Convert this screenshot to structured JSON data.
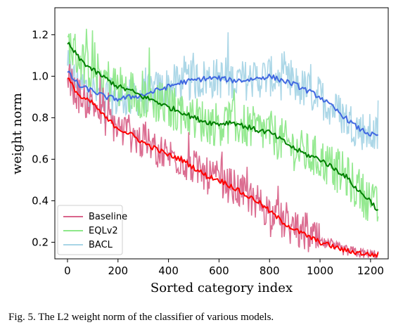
{
  "caption": "Fig. 5.  The L2 weight norm of the classifier of various models.",
  "chart_data": {
    "type": "line",
    "xlabel": "Sorted category index",
    "ylabel": "weight norm",
    "xlim": [
      -50,
      1270
    ],
    "ylim": [
      0.12,
      1.33
    ],
    "xticks": [
      0,
      200,
      400,
      600,
      800,
      1000,
      1200
    ],
    "yticks": [
      0.2,
      0.4,
      0.6,
      0.8,
      1.0,
      1.2
    ],
    "xtick_labels": [
      "0",
      "200",
      "400",
      "600",
      "800",
      "1000",
      "1200"
    ],
    "ytick_labels": [
      "0.2",
      "0.4",
      "0.6",
      "0.8",
      "1.0",
      "1.2"
    ],
    "grid": false,
    "legend_position": "lower-left",
    "legend": [
      {
        "label": "Baseline",
        "color": "#d9658b"
      },
      {
        "label": "EQLv2",
        "color": "#8ee88a"
      },
      {
        "label": "BACL",
        "color": "#a8d5e6"
      }
    ],
    "x": [
      0,
      50,
      100,
      150,
      200,
      250,
      300,
      350,
      400,
      450,
      500,
      550,
      600,
      650,
      700,
      750,
      800,
      850,
      900,
      950,
      1000,
      1050,
      1100,
      1150,
      1200,
      1230
    ],
    "series": [
      {
        "name": "Baseline",
        "raw_color": "#d9658b",
        "smooth_color": "#ff0000",
        "values": [
          0.99,
          0.9,
          0.87,
          0.8,
          0.75,
          0.72,
          0.68,
          0.65,
          0.62,
          0.6,
          0.56,
          0.52,
          0.5,
          0.47,
          0.43,
          0.4,
          0.35,
          0.3,
          0.26,
          0.23,
          0.2,
          0.18,
          0.16,
          0.15,
          0.14,
          0.14
        ]
      },
      {
        "name": "EQLv2",
        "raw_color": "#8ee88a",
        "smooth_color": "#008000",
        "values": [
          1.16,
          1.08,
          1.03,
          0.99,
          0.95,
          0.93,
          0.9,
          0.88,
          0.85,
          0.83,
          0.8,
          0.78,
          0.77,
          0.78,
          0.76,
          0.74,
          0.73,
          0.69,
          0.65,
          0.62,
          0.6,
          0.56,
          0.52,
          0.45,
          0.4,
          0.35
        ]
      },
      {
        "name": "BACL",
        "raw_color": "#a8d5e6",
        "smooth_color": "#4169e1",
        "values": [
          1.02,
          0.95,
          0.93,
          0.9,
          0.89,
          0.9,
          0.91,
          0.93,
          0.95,
          0.97,
          0.98,
          0.99,
          0.99,
          0.98,
          0.98,
          0.99,
          1.0,
          0.98,
          0.96,
          0.93,
          0.9,
          0.85,
          0.8,
          0.75,
          0.72,
          0.71
        ]
      }
    ]
  }
}
